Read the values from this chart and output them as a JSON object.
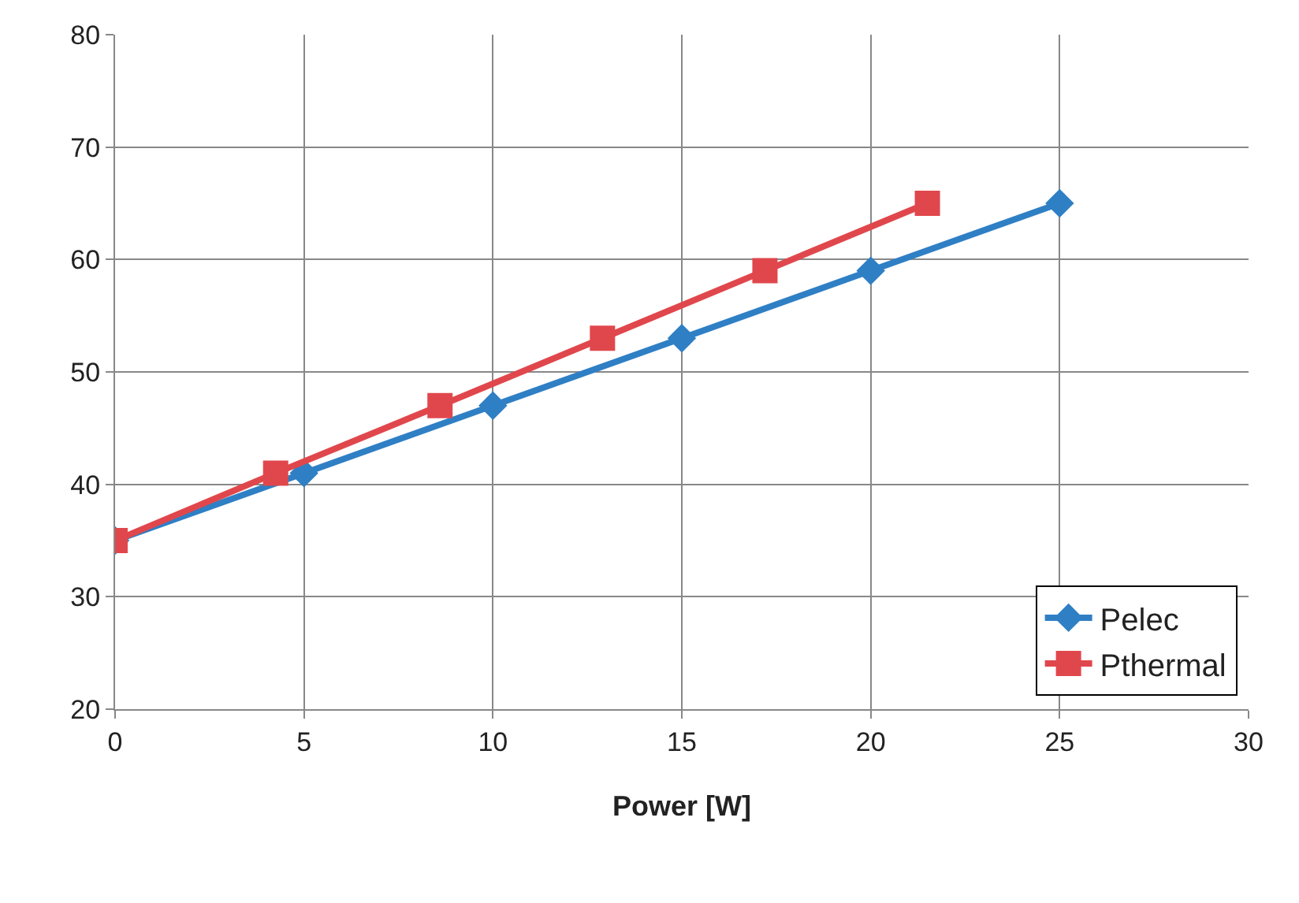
{
  "chart_data": {
    "type": "line",
    "xlabel": "Power [W]",
    "xlim": [
      0,
      30
    ],
    "xticks": [
      0,
      5,
      10,
      15,
      20,
      25,
      30
    ],
    "ylim": [
      20,
      80
    ],
    "yticks": [
      20,
      30,
      40,
      50,
      60,
      70,
      80
    ],
    "grid": true,
    "legend": "bottom right",
    "line_style": "solid",
    "series": [
      {
        "name": "Pelec",
        "color": "#2f7fc5",
        "marker": "diamond",
        "x": [
          0,
          5,
          10,
          15,
          20,
          25
        ],
        "values": [
          35,
          41,
          47,
          53,
          59,
          65
        ]
      },
      {
        "name": "Pthermal",
        "color": "#e0474c",
        "marker": "square",
        "x": [
          0,
          4.25,
          8.6,
          12.9,
          17.2,
          21.5
        ],
        "values": [
          35,
          41,
          47,
          53,
          59,
          65
        ]
      }
    ]
  }
}
